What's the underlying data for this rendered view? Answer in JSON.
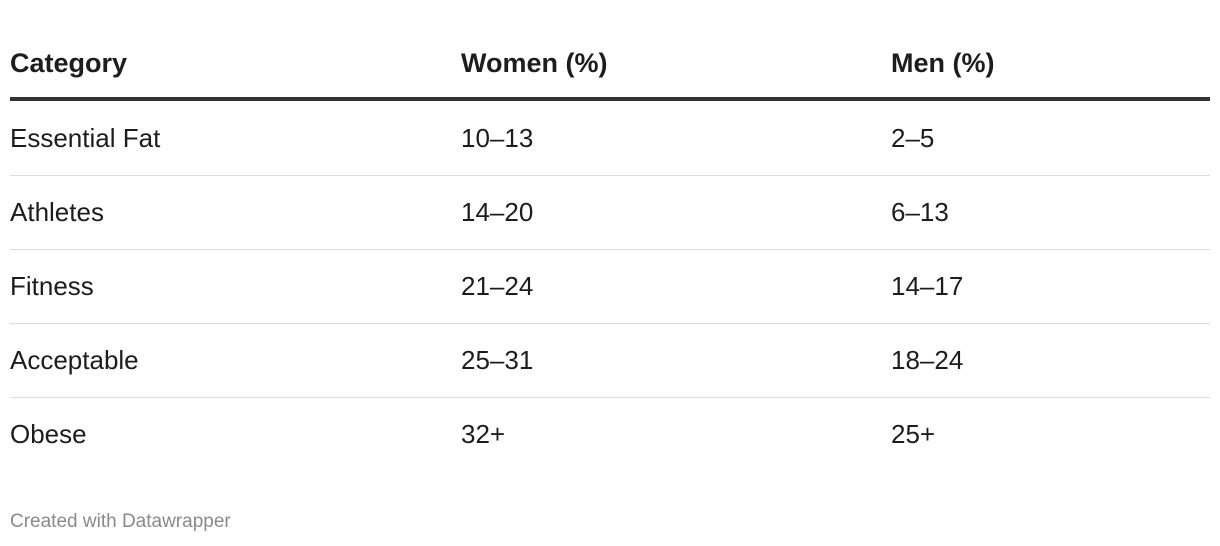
{
  "table": {
    "columns": [
      "Category",
      "Women (%)",
      "Men (%)"
    ],
    "rows": [
      [
        "Essential Fat",
        "10–13",
        "2–5"
      ],
      [
        "Athletes",
        "14–20",
        "6–13"
      ],
      [
        "Fitness",
        "21–24",
        "14–17"
      ],
      [
        "Acceptable",
        "25–31",
        "18–24"
      ],
      [
        "Obese",
        "32+",
        "25+"
      ]
    ]
  },
  "footer": {
    "text": "Created with Datawrapper"
  }
}
